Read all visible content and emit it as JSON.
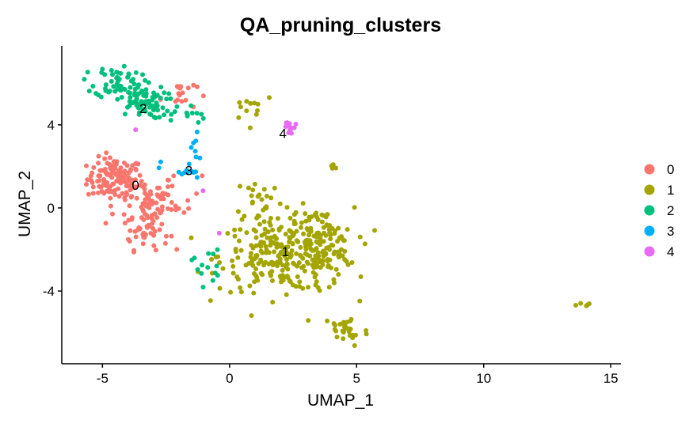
{
  "chart_data": {
    "type": "scatter",
    "title": "QA_pruning_clusters",
    "xlabel": "UMAP_1",
    "ylabel": "UMAP_2",
    "xlim": [
      -6.6,
      15.4
    ],
    "ylim": [
      -7.5,
      7.8
    ],
    "xticks": [
      -5,
      0,
      5,
      10,
      15
    ],
    "yticks": [
      -4,
      0,
      4
    ],
    "grid": false,
    "legend_position": "right",
    "series": [
      {
        "name": "0",
        "color": "#F8766D",
        "label_position": [
          -3.7,
          1.1
        ],
        "regions": [
          {
            "cx": -4.5,
            "cy": 1.4,
            "sx": 0.55,
            "sy": 0.5,
            "n": 120
          },
          {
            "cx": -3.3,
            "cy": 0.3,
            "sx": 0.6,
            "sy": 0.7,
            "n": 55
          },
          {
            "cx": -3.3,
            "cy": -1.2,
            "sx": 0.45,
            "sy": 0.4,
            "n": 35
          },
          {
            "cx": -2.0,
            "cy": 5.5,
            "sx": 0.35,
            "sy": 0.4,
            "n": 18
          },
          {
            "cx": -2.3,
            "cy": 0.5,
            "sx": 0.6,
            "sy": 0.6,
            "n": 25
          }
        ]
      },
      {
        "name": "1",
        "color": "#A3A500",
        "label_position": [
          2.2,
          -2.1
        ],
        "regions": [
          {
            "cx": 2.2,
            "cy": -2.3,
            "sx": 1.3,
            "sy": 0.85,
            "n": 260
          },
          {
            "cx": 3.5,
            "cy": -1.8,
            "sx": 0.7,
            "sy": 0.9,
            "n": 90
          },
          {
            "cx": 4.6,
            "cy": -5.9,
            "sx": 0.45,
            "sy": 0.4,
            "n": 30
          },
          {
            "cx": 1.2,
            "cy": 0.4,
            "sx": 0.5,
            "sy": 0.6,
            "n": 25
          },
          {
            "cx": 0.9,
            "cy": 5.0,
            "sx": 0.45,
            "sy": 0.4,
            "n": 12
          },
          {
            "cx": 4.1,
            "cy": 1.9,
            "sx": 0.2,
            "sy": 0.1,
            "n": 5
          },
          {
            "cx": 14.0,
            "cy": -4.7,
            "sx": 0.2,
            "sy": 0.15,
            "n": 5
          }
        ]
      },
      {
        "name": "2",
        "color": "#00BF7D",
        "label_position": [
          -3.4,
          4.8
        ],
        "regions": [
          {
            "cx": -4.4,
            "cy": 6.1,
            "sx": 0.45,
            "sy": 0.4,
            "n": 55
          },
          {
            "cx": -3.5,
            "cy": 5.1,
            "sx": 0.5,
            "sy": 0.4,
            "n": 70
          },
          {
            "cx": -1.8,
            "cy": 4.5,
            "sx": 0.4,
            "sy": 0.3,
            "n": 15
          },
          {
            "cx": -0.9,
            "cy": -2.7,
            "sx": 0.3,
            "sy": 0.5,
            "n": 14
          }
        ]
      },
      {
        "name": "3",
        "color": "#00B0F6",
        "label_position": [
          -1.6,
          1.8
        ],
        "regions": [
          {
            "cx": -1.8,
            "cy": 1.8,
            "sx": 0.45,
            "sy": 0.3,
            "n": 14
          },
          {
            "cx": -1.4,
            "cy": 2.8,
            "sx": 0.15,
            "sy": 0.4,
            "n": 6
          }
        ]
      },
      {
        "name": "4",
        "color": "#E76BF3",
        "label_position": [
          2.1,
          3.6
        ],
        "regions": [
          {
            "cx": 2.4,
            "cy": 3.9,
            "sx": 0.15,
            "sy": 0.2,
            "n": 12
          },
          {
            "cx": -3.6,
            "cy": 3.6,
            "sx": 0.1,
            "sy": 0.1,
            "n": 1
          },
          {
            "cx": -1.1,
            "cy": 0.9,
            "sx": 0.1,
            "sy": 0.1,
            "n": 1
          },
          {
            "cx": -0.3,
            "cy": -1.3,
            "sx": 0.1,
            "sy": 0.1,
            "n": 1
          }
        ]
      }
    ]
  }
}
